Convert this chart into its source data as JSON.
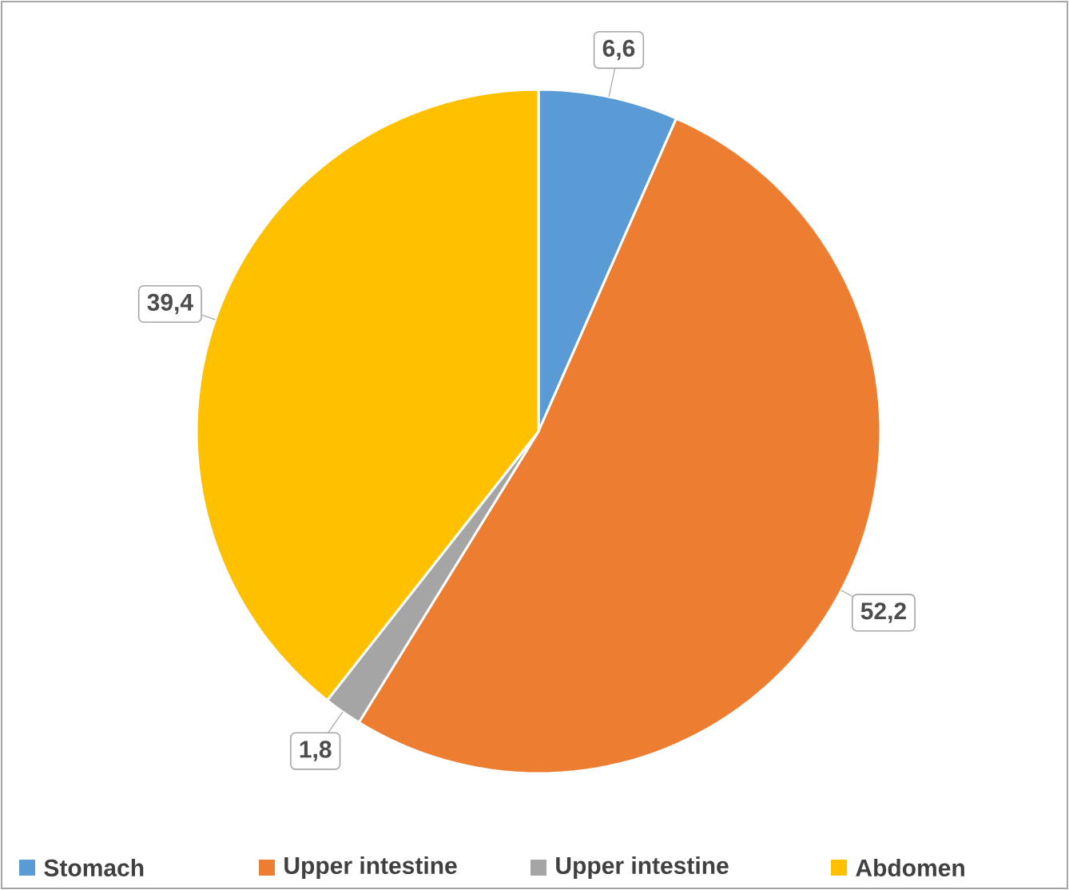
{
  "chart_data": {
    "type": "pie",
    "categories": [
      "Stomach",
      "Upper intestine",
      "Upper intestine",
      "Abdomen"
    ],
    "values": [
      6.6,
      52.2,
      1.8,
      39.4
    ],
    "value_labels": [
      "6,6",
      "52,2",
      "1,8",
      "39,4"
    ],
    "colors": [
      "#5b9bd5",
      "#ed7d31",
      "#a5a5a5",
      "#ffc000"
    ],
    "legend": "bottom"
  }
}
